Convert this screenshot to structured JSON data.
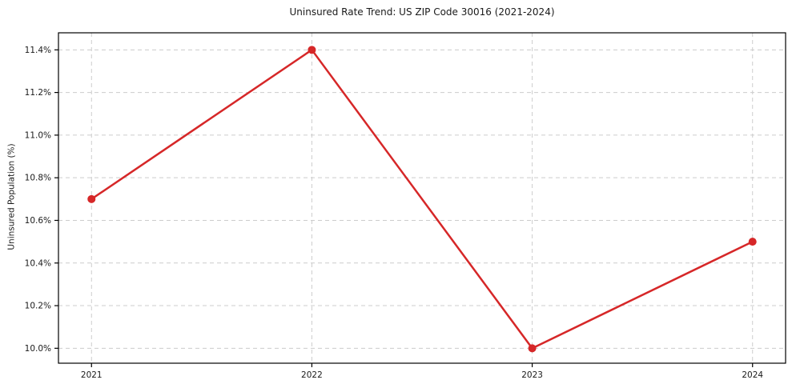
{
  "chart_data": {
    "type": "line",
    "title": "Uninsured Rate Trend: US ZIP Code 30016 (2021-2024)",
    "ylabel": "Uninsured Population (%)",
    "xlabel": "",
    "x": [
      2021,
      2022,
      2023,
      2024
    ],
    "values": [
      10.7,
      11.4,
      10.0,
      10.5
    ],
    "xtick_labels": [
      "2021",
      "2022",
      "2023",
      "2024"
    ],
    "yticks": [
      10.0,
      10.2,
      10.4,
      10.6,
      10.8,
      11.0,
      11.2,
      11.4
    ],
    "ytick_labels": [
      "10.0%",
      "10.2%",
      "10.4%",
      "10.6%",
      "10.8%",
      "11.0%",
      "11.2%",
      "11.4%"
    ],
    "xlim": [
      2020.85,
      2024.15
    ],
    "ylim": [
      9.93,
      11.48
    ],
    "grid": true,
    "grid_style": "dashed",
    "legend_position": "none",
    "line_color": "#d62728",
    "marker": "circle",
    "marker_radius": 5,
    "line_width": 2.5,
    "grid_color": "#cccccc",
    "spine_color": "#000000",
    "text_color": "#1a1a1a",
    "background_color": "#ffffff"
  }
}
